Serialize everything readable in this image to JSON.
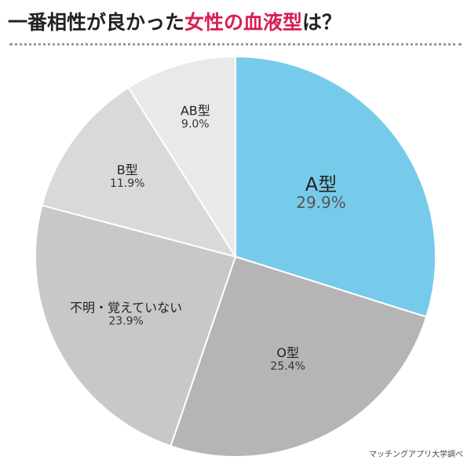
{
  "title": {
    "part1": "一番相性が良かった",
    "accent": "女性の血液型",
    "part2": "は？"
  },
  "source": "マッチングアプリ大学調べ",
  "colors": {
    "accent": "#d81f4f",
    "highlight": "#77cbea",
    "text": "#222222"
  },
  "chart_data": {
    "type": "pie",
    "start": "12 o'clock, clockwise",
    "slices": [
      {
        "label": "A型",
        "value_label": "29.9%",
        "value": 29.9,
        "color": "#77cbea"
      },
      {
        "label": "O型",
        "value_label": "25.4%",
        "value": 25.4,
        "color": "#b5b5b5"
      },
      {
        "label": "不明・覚えていない",
        "value_label": "23.9%",
        "value": 23.9,
        "color": "#c8c8c8"
      },
      {
        "label": "B型",
        "value_label": "11.9%",
        "value": 11.9,
        "color": "#d9d9d9"
      },
      {
        "label": "AB型",
        "value_label": "9.0%",
        "value": 9.0,
        "color": "#e9e9e9"
      }
    ]
  }
}
